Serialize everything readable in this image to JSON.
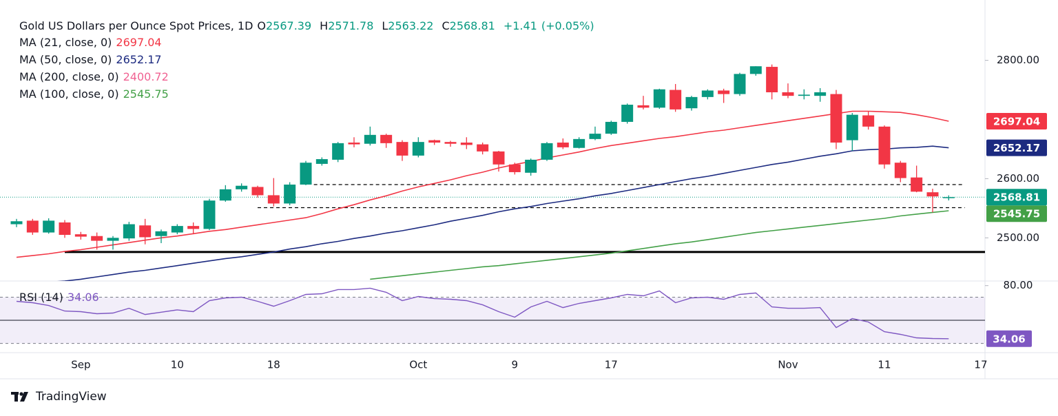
{
  "chart_data": {
    "type": "candlestick",
    "title": "Gold US Dollars per Ounce Spot Prices, 1D",
    "ohlc_labels": [
      "O",
      "H",
      "L",
      "C"
    ],
    "change": "+1.41",
    "change_percent": "(+0.05%)",
    "up_color": "#089981",
    "down_color": "#f23645",
    "categories": [
      null,
      null,
      null,
      null,
      "Sep",
      null,
      null,
      null,
      null,
      null,
      "10",
      null,
      null,
      null,
      null,
      null,
      "18",
      null,
      null,
      null,
      null,
      null,
      null,
      null,
      null,
      "Oct",
      null,
      null,
      null,
      null,
      null,
      "9",
      null,
      null,
      null,
      null,
      null,
      "17",
      null,
      null,
      null,
      null,
      null,
      null,
      null,
      null,
      null,
      null,
      "Nov",
      null,
      null,
      null,
      null,
      null,
      "11",
      null,
      null,
      null,
      null,
      null,
      "17"
    ],
    "open": [
      2523,
      2529,
      2509,
      2526,
      2506,
      2503,
      2495,
      2499,
      2521,
      2503,
      2509,
      2520,
      2515,
      2563,
      2582,
      2586,
      2572,
      2558,
      2590,
      2625,
      2632,
      2661,
      2659,
      2674,
      2662,
      2639,
      2665,
      2662,
      2661,
      2658,
      2646,
      2624,
      2610,
      2632,
      2661,
      2652,
      2667,
      2676,
      2696,
      2724,
      2720,
      2750,
      2719,
      2738,
      2749,
      2743,
      2777,
      2789,
      2746,
      2740,
      2740,
      2743,
      2665,
      2707,
      2688,
      2627,
      2602,
      2577,
      2567.39,
      null,
      null
    ],
    "high": [
      2532,
      2532,
      2533,
      2530,
      2510,
      2509,
      2503,
      2527,
      2532,
      2514,
      2523,
      2526,
      2566,
      2589,
      2592,
      2588,
      2601,
      2594,
      2630,
      2636,
      2662,
      2670,
      2688,
      2676,
      2665,
      2670,
      2666,
      2664,
      2670,
      2661,
      2647,
      2627,
      2634,
      2662,
      2668,
      2670,
      2688,
      2698,
      2727,
      2740,
      2752,
      2760,
      2740,
      2751,
      2752,
      2779,
      2790,
      2793,
      2761,
      2751,
      2753,
      2750,
      2711,
      2714,
      2690,
      2630,
      2622,
      2583,
      2571.78,
      null,
      null
    ],
    "low": [
      2518,
      2505,
      2507,
      2500,
      2497,
      2480,
      2480,
      2495,
      2489,
      2491,
      2506,
      2506,
      2513,
      2561,
      2578,
      2568,
      2553,
      2555,
      2589,
      2622,
      2628,
      2653,
      2656,
      2652,
      2630,
      2636,
      2657,
      2654,
      2650,
      2641,
      2612,
      2607,
      2605,
      2630,
      2650,
      2651,
      2665,
      2674,
      2693,
      2717,
      2718,
      2713,
      2715,
      2734,
      2728,
      2740,
      2774,
      2734,
      2736,
      2734,
      2730,
      2650,
      2647,
      2683,
      2617,
      2594,
      2577,
      2543,
      2563.22,
      null,
      null
    ],
    "close": [
      2528,
      2509,
      2529,
      2505,
      2502,
      2495,
      2500,
      2523,
      2501,
      2511,
      2520,
      2515,
      2563,
      2582,
      2588,
      2572,
      2558,
      2590,
      2627,
      2633,
      2660,
      2658,
      2674,
      2660,
      2639,
      2662,
      2661,
      2659,
      2657,
      2646,
      2624,
      2611,
      2632,
      2660,
      2653,
      2667,
      2676,
      2696,
      2725,
      2720,
      2751,
      2717,
      2738,
      2749,
      2743,
      2777,
      2790,
      2746,
      2740,
      2742,
      2746,
      2661,
      2708,
      2688,
      2624,
      2601,
      2578,
      2570,
      2568.81,
      null,
      null
    ],
    "ylim": [
      2427,
      2902
    ],
    "yticks": [
      {
        "value": 2800,
        "label": "2800.00"
      },
      {
        "value": 2600,
        "label": "2600.00"
      },
      {
        "value": 2500,
        "label": "2500.00"
      }
    ],
    "moving_averages": [
      {
        "name": "MA (21, close, 0)",
        "color": "#f23645",
        "last": 2697.04,
        "values": [
          2467,
          2470,
          2473,
          2477,
          2480,
          2484,
          2488,
          2492,
          2496,
          2500,
          2503,
          2507,
          2511,
          2514,
          2518,
          2522,
          2526,
          2530,
          2534,
          2541,
          2549,
          2556,
          2564,
          2571,
          2579,
          2586,
          2592,
          2598,
          2605,
          2611,
          2618,
          2624,
          2629,
          2635,
          2640,
          2645,
          2651,
          2656,
          2660,
          2664,
          2668,
          2671,
          2675,
          2679,
          2682,
          2686,
          2690,
          2694,
          2698,
          2702,
          2706,
          2710,
          2714,
          2714,
          2713,
          2712,
          2708,
          2703,
          2697.04,
          null,
          null
        ]
      },
      {
        "name": "MA (50, close, 0)",
        "color": "#1c2a80",
        "last": 2652.17,
        "values": [
          2420,
          2422,
          2425,
          2427,
          2430,
          2434,
          2438,
          2442,
          2445,
          2449,
          2453,
          2457,
          2461,
          2465,
          2468,
          2472,
          2476,
          2481,
          2485,
          2490,
          2494,
          2499,
          2503,
          2508,
          2512,
          2517,
          2522,
          2528,
          2533,
          2538,
          2544,
          2549,
          2553,
          2558,
          2562,
          2566,
          2571,
          2575,
          2580,
          2585,
          2590,
          2595,
          2600,
          2604,
          2609,
          2614,
          2619,
          2624,
          2628,
          2633,
          2638,
          2642,
          2647,
          2649,
          2650,
          2652,
          2653,
          2655,
          2652.17,
          null,
          null
        ]
      },
      {
        "name": "MA (200, close, 0)",
        "color": "#f06292",
        "last": 2400.72
      },
      {
        "name": "MA (100, close, 0)",
        "color": "#43a047",
        "last": 2545.75,
        "values": [
          null,
          null,
          null,
          null,
          null,
          null,
          null,
          null,
          null,
          null,
          null,
          null,
          null,
          null,
          null,
          null,
          null,
          null,
          null,
          null,
          null,
          null,
          2430,
          2433,
          2436,
          2439,
          2442,
          2445,
          2448,
          2451,
          2453,
          2456,
          2459,
          2462,
          2465,
          2468,
          2471,
          2474,
          2478,
          2482,
          2486,
          2490,
          2493,
          2497,
          2501,
          2505,
          2509,
          2512,
          2515,
          2518,
          2521,
          2524,
          2527,
          2530,
          2533,
          2537,
          2540,
          2543,
          2545.75,
          null,
          null
        ]
      }
    ],
    "levels": [
      {
        "value": 2476,
        "start": 3,
        "style": "solid"
      },
      {
        "value": 2590,
        "start": 18.5,
        "end": 59,
        "style": "dashed"
      },
      {
        "value": 2551,
        "start": 15,
        "end": 59,
        "style": "dashed"
      }
    ],
    "rsi": {
      "name": "RSI (14)",
      "color": "#7e57c2",
      "values": [
        66.4,
        65.2,
        62.8,
        58,
        57.5,
        55.7,
        56.3,
        60.4,
        55,
        57,
        59,
        57.5,
        67,
        69.4,
        70,
        66.4,
        62.2,
        67,
        72.4,
        73,
        76.6,
        76.6,
        77.8,
        74.2,
        67,
        70.6,
        68.8,
        68.2,
        67,
        63.4,
        57.5,
        52.7,
        61.6,
        66.4,
        61,
        64.6,
        67,
        69.4,
        72.4,
        71.2,
        75.4,
        65.2,
        69.4,
        70,
        68.2,
        72.4,
        73.6,
        61.6,
        60.4,
        60.4,
        61,
        43.7,
        51.5,
        48.5,
        40.1,
        37.8,
        34.8,
        34.2,
        34.06,
        null,
        null
      ],
      "ylim": [
        22,
        84
      ],
      "yticks": [
        {
          "value": 80,
          "label": "80.00"
        }
      ],
      "levels": [
        70,
        50,
        30
      ]
    }
  },
  "footer": {
    "brand": "TradingView"
  }
}
